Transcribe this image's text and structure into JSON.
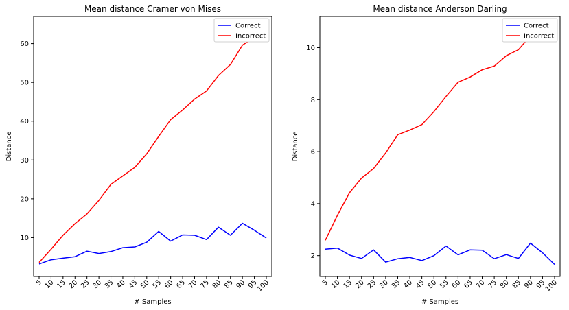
{
  "chart_data": [
    {
      "type": "line",
      "title": "Mean distance Cramer von Mises",
      "xlabel": "# Samples",
      "ylabel": "Distance",
      "categories": [
        "5",
        "10",
        "15",
        "20",
        "25",
        "30",
        "35",
        "40",
        "45",
        "50",
        "55",
        "60",
        "65",
        "70",
        "75",
        "80",
        "85",
        "90",
        "95",
        "100"
      ],
      "ylim": [
        0,
        67
      ],
      "yticks": [
        10,
        20,
        30,
        40,
        50,
        60
      ],
      "legend_position": "top-right",
      "grid": false,
      "series": [
        {
          "name": "Correct",
          "color": "#0000ff",
          "values": [
            3.2,
            4.3,
            4.7,
            5.1,
            6.5,
            5.9,
            6.4,
            7.4,
            7.6,
            8.8,
            11.6,
            9.1,
            10.7,
            10.6,
            9.5,
            12.7,
            10.6,
            13.7,
            11.9,
            9.9
          ]
        },
        {
          "name": "Incorrect",
          "color": "#ff0000",
          "values": [
            3.6,
            7.0,
            10.6,
            13.6,
            16.1,
            19.6,
            23.7,
            25.9,
            28.1,
            31.6,
            36.1,
            40.4,
            42.9,
            45.7,
            47.8,
            51.8,
            54.6,
            59.6,
            61.6,
            63.2
          ]
        }
      ]
    },
    {
      "type": "line",
      "title": "Mean distance Anderson Darling",
      "xlabel": "# Samples",
      "ylabel": "Distance",
      "categories": [
        "5",
        "10",
        "15",
        "20",
        "25",
        "30",
        "35",
        "40",
        "45",
        "50",
        "55",
        "60",
        "65",
        "70",
        "75",
        "80",
        "85",
        "90",
        "95",
        "100"
      ],
      "ylim": [
        1.2,
        11.2
      ],
      "yticks": [
        2,
        4,
        6,
        8,
        10
      ],
      "legend_position": "top-right",
      "grid": false,
      "series": [
        {
          "name": "Correct",
          "color": "#0000ff",
          "values": [
            2.25,
            2.29,
            2.02,
            1.89,
            2.22,
            1.75,
            1.88,
            1.93,
            1.81,
            2.0,
            2.37,
            2.03,
            2.22,
            2.21,
            1.88,
            2.04,
            1.89,
            2.48,
            2.11,
            1.66
          ]
        },
        {
          "name": "Incorrect",
          "color": "#ff0000",
          "values": [
            2.59,
            3.55,
            4.42,
            4.98,
            5.35,
            5.95,
            6.65,
            6.83,
            7.04,
            7.54,
            8.12,
            8.67,
            8.87,
            9.15,
            9.29,
            9.69,
            9.92,
            10.45,
            10.6,
            10.7
          ]
        }
      ]
    }
  ]
}
